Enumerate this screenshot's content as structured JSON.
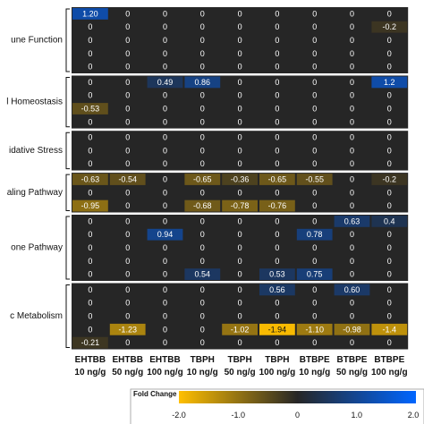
{
  "chart_data": {
    "type": "heatmap",
    "columns": [
      {
        "line1": "EHTBB",
        "line2": "10 ng/g"
      },
      {
        "line1": "EHTBB",
        "line2": "50 ng/g"
      },
      {
        "line1": "EHTBB",
        "line2": "100 ng/g"
      },
      {
        "line1": "TBPH",
        "line2": "10 ng/g"
      },
      {
        "line1": "TBPH",
        "line2": "50 ng/g"
      },
      {
        "line1": "TBPH",
        "line2": "100 ng/g"
      },
      {
        "line1": "BTBPE",
        "line2": "10 ng/g"
      },
      {
        "line1": "BTBPE",
        "line2": "50 ng/g"
      },
      {
        "line1": "BTBPE",
        "line2": "100 ng/g"
      }
    ],
    "groups": [
      {
        "label": "une Function",
        "rows": [
          [
            "1.20",
            "0",
            "0",
            "0",
            "0",
            "0",
            "0",
            "0",
            "0"
          ],
          [
            "0",
            "0",
            "0",
            "0",
            "0",
            "0",
            "0",
            "0",
            "-0.2"
          ],
          [
            "0",
            "0",
            "0",
            "0",
            "0",
            "0",
            "0",
            "0",
            "0"
          ],
          [
            "0",
            "0",
            "0",
            "0",
            "0",
            "0",
            "0",
            "0",
            "0"
          ],
          [
            "0",
            "0",
            "0",
            "0",
            "0",
            "0",
            "0",
            "0",
            "0"
          ]
        ]
      },
      {
        "label": "l Homeostasis",
        "rows": [
          [
            "0",
            "0",
            "0.49",
            "0.86",
            "0",
            "0",
            "0",
            "0",
            "1.2"
          ],
          [
            "0",
            "0",
            "0",
            "0",
            "0",
            "0",
            "0",
            "0",
            "0"
          ],
          [
            "-0.53",
            "0",
            "0",
            "0",
            "0",
            "0",
            "0",
            "0",
            "0"
          ],
          [
            "0",
            "0",
            "0",
            "0",
            "0",
            "0",
            "0",
            "0",
            "0"
          ]
        ]
      },
      {
        "label": "idative Stress",
        "rows": [
          [
            "0",
            "0",
            "0",
            "0",
            "0",
            "0",
            "0",
            "0",
            "0"
          ],
          [
            "0",
            "0",
            "0",
            "0",
            "0",
            "0",
            "0",
            "0",
            "0"
          ],
          [
            "0",
            "0",
            "0",
            "0",
            "0",
            "0",
            "0",
            "0",
            "0"
          ]
        ]
      },
      {
        "label": "aling Pathway",
        "rows": [
          [
            "-0.63",
            "-0.54",
            "0",
            "-0.65",
            "-0.36",
            "-0.65",
            "-0.55",
            "0",
            "-0.2"
          ],
          [
            "0",
            "0",
            "0",
            "0",
            "0",
            "0",
            "0",
            "0",
            "0"
          ],
          [
            "-0.95",
            "0",
            "0",
            "-0.68",
            "-0.78",
            "-0.76",
            "0",
            "0",
            "0"
          ]
        ]
      },
      {
        "label": "one Pathway",
        "rows": [
          [
            "0",
            "0",
            "0",
            "0",
            "0",
            "0",
            "0",
            "0.63",
            "0.4"
          ],
          [
            "0",
            "0",
            "0.94",
            "0",
            "0",
            "0",
            "0.78",
            "0",
            "0"
          ],
          [
            "0",
            "0",
            "0",
            "0",
            "0",
            "0",
            "0",
            "0",
            "0"
          ],
          [
            "0",
            "0",
            "0",
            "0",
            "0",
            "0",
            "0",
            "0",
            "0"
          ],
          [
            "0",
            "0",
            "0",
            "0.54",
            "0",
            "0.53",
            "0.75",
            "0",
            "0"
          ]
        ]
      },
      {
        "label": "c Metabolism",
        "rows": [
          [
            "0",
            "0",
            "0",
            "0",
            "0",
            "0.56",
            "0",
            "0.60",
            "0"
          ],
          [
            "0",
            "0",
            "0",
            "0",
            "0",
            "0",
            "0",
            "0",
            "0"
          ],
          [
            "0",
            "0",
            "0",
            "0",
            "0",
            "0",
            "0",
            "0",
            "0"
          ],
          [
            "0",
            "-1.23",
            "0",
            "0",
            "-1.02",
            "-1.94",
            "-1.10",
            "-0.98",
            "-1.4"
          ],
          [
            "-0.21",
            "0",
            "0",
            "0",
            "0",
            "0",
            "0",
            "0",
            "0"
          ]
        ]
      }
    ],
    "legend": {
      "title": "Fold Change",
      "ticks": [
        "-2.0",
        "-1.0",
        "0",
        "1.0",
        "2.0"
      ],
      "range": [
        -2,
        2
      ],
      "negative_color": "#ffbf00",
      "zero_color": "#262626",
      "positive_color": "#0066ff"
    },
    "colors": {
      "cell_background": "#262626",
      "separator": "#ffffff",
      "zero_text": "#ffffff",
      "value_text": "#ffffff",
      "strong_negative_text": "#111111"
    }
  }
}
